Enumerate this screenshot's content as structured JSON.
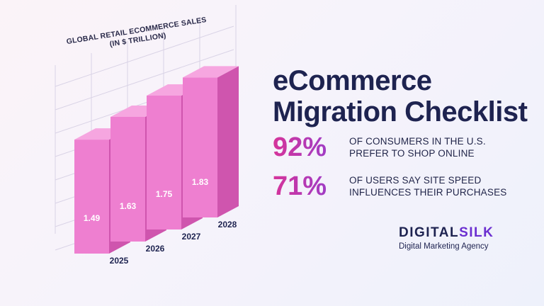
{
  "chart_data": {
    "type": "bar",
    "title": "GLOBAL RETAIL ECOMMERCE SALES (IN $ TRILLION)",
    "categories": [
      "2025",
      "2026",
      "2027",
      "2028"
    ],
    "values": [
      1.49,
      1.63,
      1.75,
      1.83
    ],
    "value_labels": [
      "1.49",
      "1.63",
      "1.75",
      "1.83"
    ],
    "grid": true,
    "style": "3d",
    "bar_colors": {
      "front": "#ee7fd0",
      "side": "#cf55ae",
      "top": "#f6a6e0"
    }
  },
  "headline": {
    "line1": "eCommerce",
    "line2": "Migration Checklist"
  },
  "stats": [
    {
      "percent": "92%",
      "line1": "OF CONSUMERS IN THE U.S.",
      "line2": "PREFER TO SHOP ONLINE"
    },
    {
      "percent": "71%",
      "line1": "OF USERS SAY SITE SPEED",
      "line2": "INFLUENCES THEIR PURCHASES"
    }
  ],
  "brand": {
    "logo_part1": "DIGITAL",
    "logo_part2": "SILK",
    "tagline": "Digital Marketing Agency"
  },
  "colors": {
    "navy": "#1e2350",
    "pink": "#d6349a",
    "purple": "#8a3fd6"
  }
}
